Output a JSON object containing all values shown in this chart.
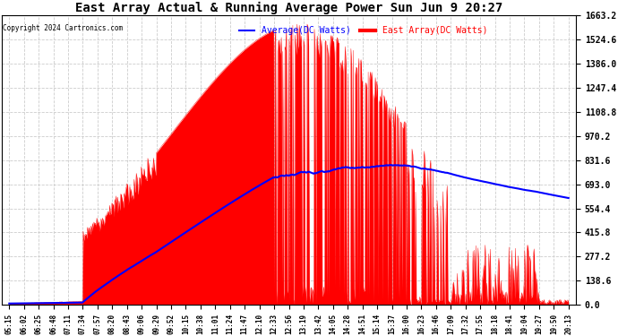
{
  "title": "East Array Actual & Running Average Power Sun Jun 9 20:27",
  "copyright": "Copyright 2024 Cartronics.com",
  "legend_avg": "Average(DC Watts)",
  "legend_east": "East Array(DC Watts)",
  "ymax": 1663.2,
  "yticks": [
    0.0,
    138.6,
    277.2,
    415.8,
    554.4,
    693.0,
    831.6,
    970.2,
    1108.8,
    1247.4,
    1386.0,
    1524.6,
    1663.2
  ],
  "x_labels": [
    "05:15",
    "06:02",
    "06:25",
    "06:48",
    "07:11",
    "07:34",
    "07:57",
    "08:20",
    "08:43",
    "09:06",
    "09:29",
    "09:52",
    "10:15",
    "10:38",
    "11:01",
    "11:24",
    "11:47",
    "12:10",
    "12:33",
    "12:56",
    "13:19",
    "13:42",
    "14:05",
    "14:28",
    "14:51",
    "15:14",
    "15:37",
    "16:00",
    "16:23",
    "16:46",
    "17:09",
    "17:32",
    "17:55",
    "18:18",
    "18:41",
    "19:04",
    "19:27",
    "19:50",
    "20:13"
  ],
  "background_color": "#ffffff",
  "grid_color": "#cccccc",
  "fill_color": "#ff0000",
  "avg_color": "#0000ff",
  "east_color": "#ff0000",
  "title_color": "#000000",
  "copyright_color": "#000000"
}
